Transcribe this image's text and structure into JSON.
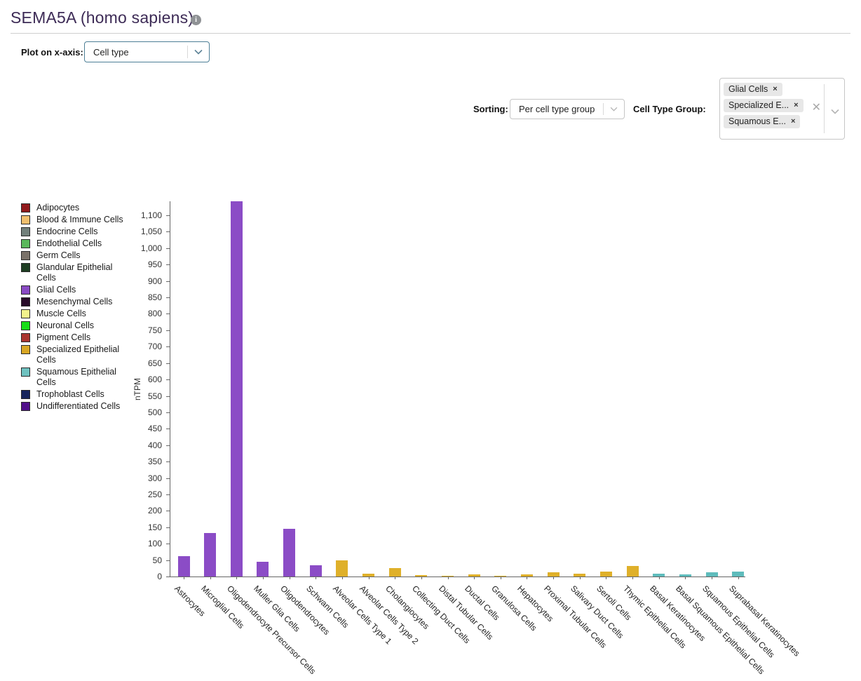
{
  "header": {
    "title": "SEMA5A (homo sapiens)"
  },
  "controls": {
    "x_axis": {
      "label": "Plot on x-axis:",
      "value": "Cell type"
    },
    "sorting": {
      "label": "Sorting:",
      "value": "Per cell type group"
    },
    "cell_type_group": {
      "label": "Cell Type Group:",
      "tags": [
        "Glial Cells",
        "Specialized E...",
        "Squamous E..."
      ]
    }
  },
  "legend": {
    "items": [
      {
        "label": "Adipocytes",
        "color": "#911a1c"
      },
      {
        "label": "Blood & Immune Cells",
        "color": "#f0bf6e"
      },
      {
        "label": "Endocrine Cells",
        "color": "#72807b"
      },
      {
        "label": "Endothelial Cells",
        "color": "#5bb85c"
      },
      {
        "label": "Germ Cells",
        "color": "#7a7269"
      },
      {
        "label": "Glandular Epithelial Cells",
        "color": "#1d3d22"
      },
      {
        "label": "Glial Cells",
        "color": "#8a4bc4"
      },
      {
        "label": "Mesenchymal Cells",
        "color": "#270b28"
      },
      {
        "label": "Muscle Cells",
        "color": "#f2f28c"
      },
      {
        "label": "Neuronal Cells",
        "color": "#17dd17"
      },
      {
        "label": "Pigment Cells",
        "color": "#aa3530"
      },
      {
        "label": "Specialized Epithelial Cells",
        "color": "#d9a724"
      },
      {
        "label": "Squamous Epithelial Cells",
        "color": "#6fc2c0"
      },
      {
        "label": "Trophoblast Cells",
        "color": "#17255c"
      },
      {
        "label": "Undifferentiated Cells",
        "color": "#50108a"
      }
    ]
  },
  "chart_data": {
    "type": "bar",
    "title": "",
    "xlabel": "",
    "ylabel": "nTPM",
    "ylim": [
      0,
      1150
    ],
    "ytick_step": 50,
    "ytick_max": 1100,
    "grid": false,
    "legend_position": "left",
    "categories": [
      "Astrocytes",
      "Microglial Cells",
      "Oligodendrocyte Precursor Cells",
      "Muller Glia Cells",
      "Oligodendrocytes",
      "Schwann Cells",
      "Alveolar Cells Type 1",
      "Alveolar Cells Type 2",
      "Cholangiocytes",
      "Collecting Duct Cells",
      "Distal Tubular Cells",
      "Ductal Cells",
      "Granulosa Cells",
      "Hepatocytes",
      "Proximal Tubular Cells",
      "Salivary Duct Cells",
      "Sertoli Cells",
      "Thymic Epithelial Cells",
      "Basal Keratinocytes",
      "Basal Squamous Epithelial Cells",
      "Squamous Epithelial Cells",
      "Suprabasal Keratinocytes"
    ],
    "values": [
      63,
      132,
      1143,
      45,
      145,
      34,
      50,
      8,
      25,
      4,
      1,
      6,
      3,
      6,
      13,
      8,
      15,
      32,
      9,
      7,
      13,
      15
    ],
    "groups": [
      "Glial Cells",
      "Glial Cells",
      "Glial Cells",
      "Glial Cells",
      "Glial Cells",
      "Glial Cells",
      "Specialized Epithelial Cells",
      "Specialized Epithelial Cells",
      "Specialized Epithelial Cells",
      "Specialized Epithelial Cells",
      "Specialized Epithelial Cells",
      "Specialized Epithelial Cells",
      "Specialized Epithelial Cells",
      "Specialized Epithelial Cells",
      "Specialized Epithelial Cells",
      "Specialized Epithelial Cells",
      "Specialized Epithelial Cells",
      "Specialized Epithelial Cells",
      "Squamous Epithelial Cells",
      "Squamous Epithelial Cells",
      "Squamous Epithelial Cells",
      "Squamous Epithelial Cells"
    ],
    "group_colors": {
      "Glial Cells": "#8b4cc6",
      "Specialized Epithelial Cells": "#dfb02a",
      "Squamous Epithelial Cells": "#5fbcbc"
    }
  }
}
